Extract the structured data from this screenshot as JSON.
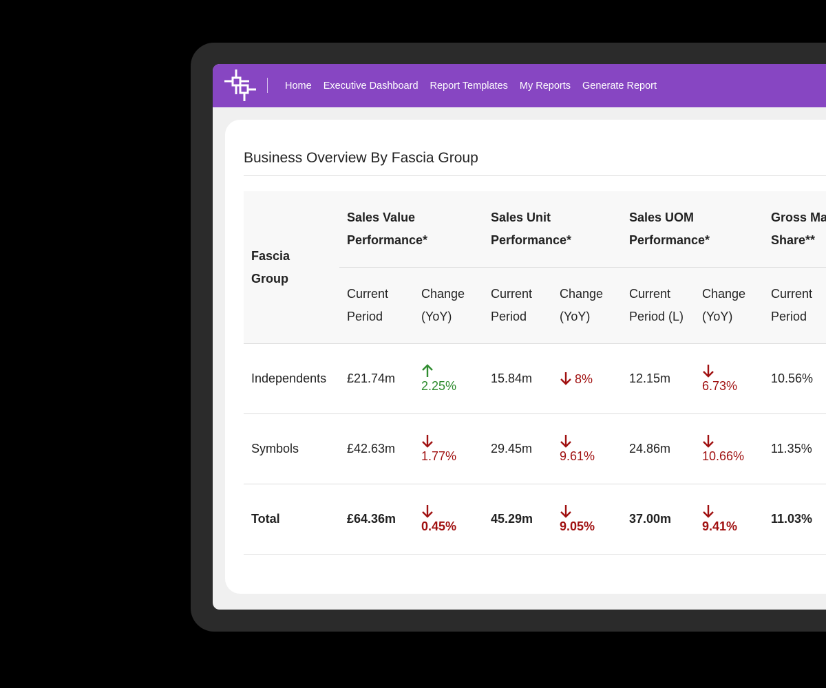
{
  "nav": {
    "items": [
      "Home",
      "Executive Dashboard",
      "Report Templates",
      "My Reports",
      "Generate Report"
    ]
  },
  "card": {
    "title": "Business Overview By Fascia Group"
  },
  "table": {
    "first_header": [
      "Fascia",
      "Group"
    ],
    "group_headers": [
      [
        "Sales Value",
        "Performance*"
      ],
      [
        "Sales Unit",
        "Performance*"
      ],
      [
        "Sales UOM",
        "Performance*"
      ],
      [
        "Gross Ma",
        "Share**"
      ]
    ],
    "sub_headers": [
      [
        "Current",
        "Period"
      ],
      [
        "Change",
        "(YoY)"
      ],
      [
        "Current",
        "Period"
      ],
      [
        "Change",
        "(YoY)"
      ],
      [
        "Current",
        "Period (L)"
      ],
      [
        "Change",
        "(YoY)"
      ],
      [
        "Current",
        "Period"
      ]
    ],
    "rows": [
      {
        "label": "Independents",
        "bold": false,
        "cells": [
          {
            "value": "£21.74m"
          },
          {
            "direction": "up",
            "value": "2.25%"
          },
          {
            "value": "15.84m"
          },
          {
            "direction": "down",
            "value": "8%",
            "inline": true
          },
          {
            "value": "12.15m"
          },
          {
            "direction": "down",
            "value": "6.73%"
          },
          {
            "value": "10.56%"
          }
        ]
      },
      {
        "label": "Symbols",
        "bold": false,
        "cells": [
          {
            "value": "£42.63m"
          },
          {
            "direction": "down",
            "value": "1.77%"
          },
          {
            "value": "29.45m"
          },
          {
            "direction": "down",
            "value": "9.61%"
          },
          {
            "value": "24.86m"
          },
          {
            "direction": "down",
            "value": "10.66%"
          },
          {
            "value": "11.35%"
          }
        ]
      },
      {
        "label": "Total",
        "bold": true,
        "cells": [
          {
            "value": "£64.36m"
          },
          {
            "direction": "down",
            "value": "0.45%"
          },
          {
            "value": "45.29m"
          },
          {
            "direction": "down",
            "value": "9.05%"
          },
          {
            "value": "37.00m"
          },
          {
            "direction": "down",
            "value": "9.41%"
          },
          {
            "value": "11.03%"
          }
        ]
      }
    ]
  }
}
